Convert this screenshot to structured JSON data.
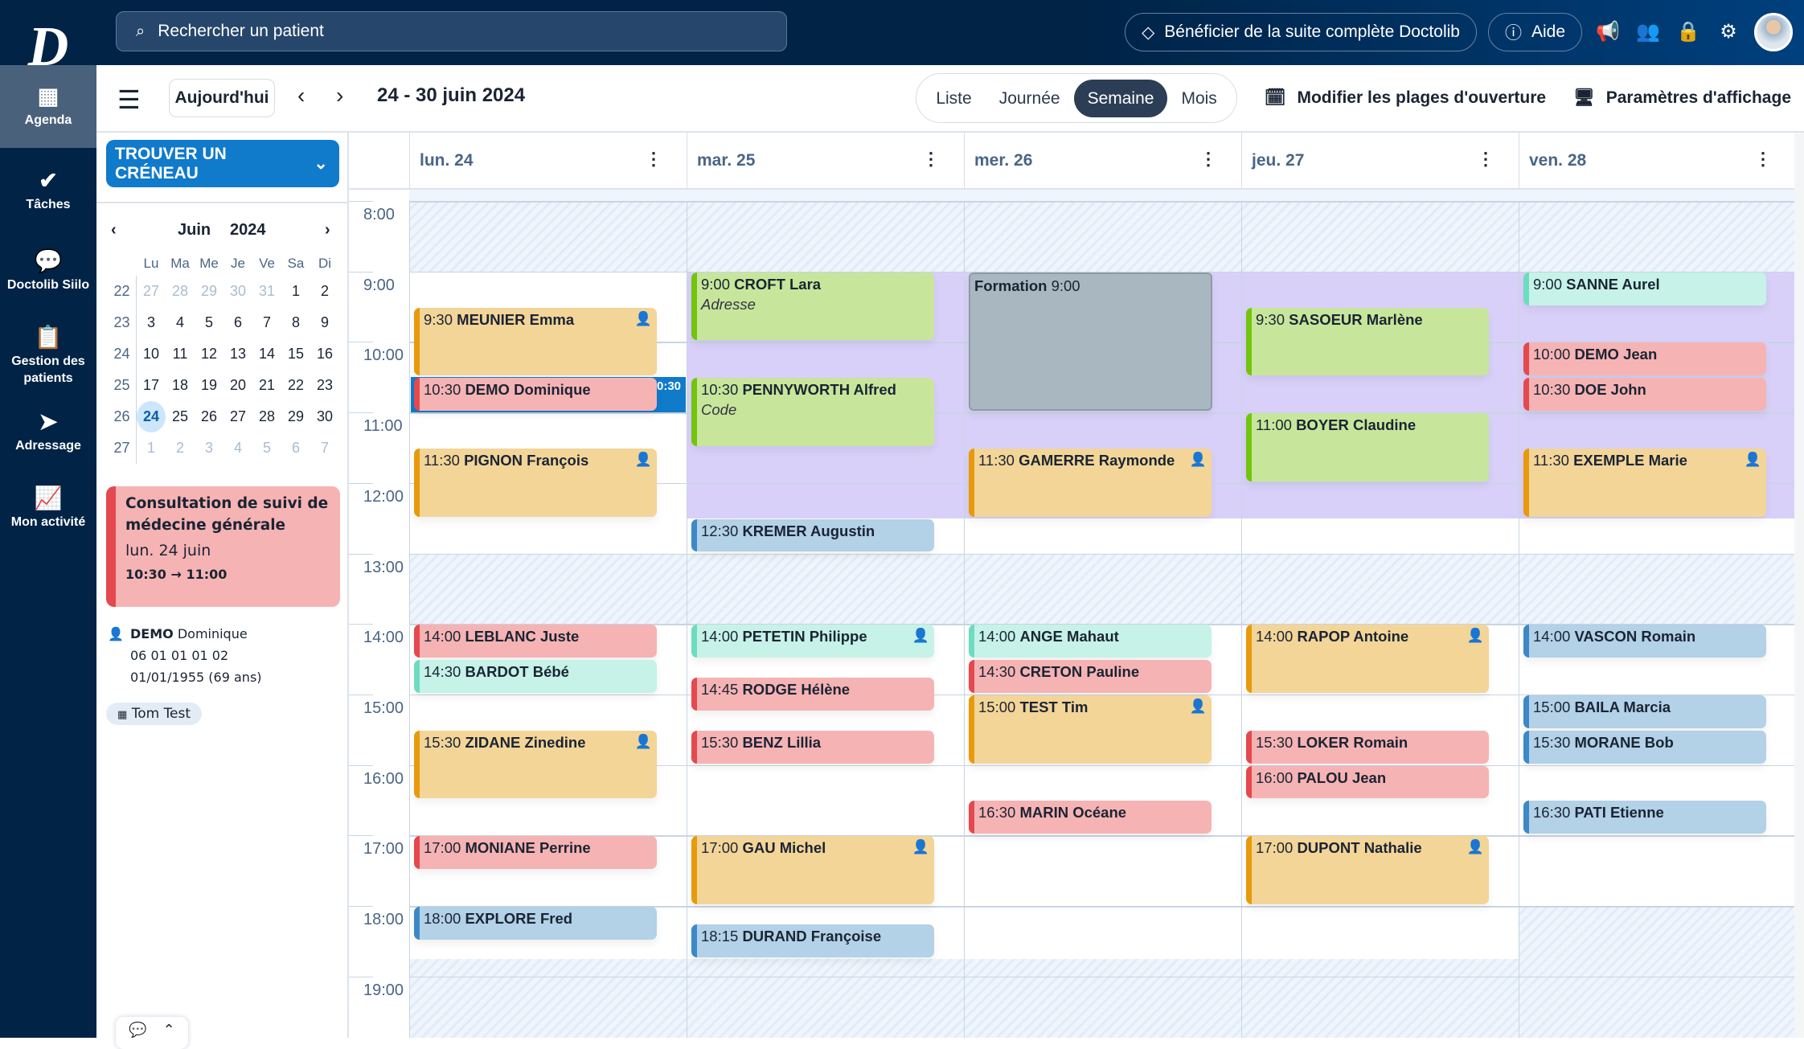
{
  "topbar": {
    "logo": "D",
    "search_placeholder": "Rechercher un patient",
    "upgrade": "Bénéficier de la suite complète Doctolib",
    "help": "Aide",
    "icons": [
      "megaphone-icon",
      "team-icon",
      "lock-icon",
      "gear-icon"
    ]
  },
  "nav": [
    {
      "label": "Agenda",
      "icon": "calendar-icon",
      "active": true
    },
    {
      "label": "Tâches",
      "icon": "check-circle-icon"
    },
    {
      "label": "Doctolib Siilo",
      "icon": "chat-icon"
    },
    {
      "label": "Gestion des patients",
      "icon": "clipboard-user-icon"
    },
    {
      "label": "Adressage",
      "icon": "paper-plane-icon"
    },
    {
      "label": "Mon activité",
      "icon": "chart-line-icon"
    }
  ],
  "toolbar": {
    "today": "Aujourd'hui",
    "range": "24 - 30 juin 2024",
    "views": [
      "Liste",
      "Journée",
      "Semaine",
      "Mois"
    ],
    "active_view": "Semaine",
    "opening": "Modifier les plages d'ouverture",
    "display": "Paramètres d'affichage"
  },
  "left": {
    "find": "TROUVER UN CRÉNEAU",
    "minical": {
      "month": "Juin",
      "year": "2024",
      "dow": [
        "Lu",
        "Ma",
        "Me",
        "Je",
        "Ve",
        "Sa",
        "Di"
      ],
      "weeks": [
        {
          "wk": "22",
          "days": [
            "27",
            "28",
            "29",
            "30",
            "31",
            "1",
            "2"
          ],
          "out": [
            0,
            1,
            2,
            3,
            4
          ]
        },
        {
          "wk": "23",
          "days": [
            "3",
            "4",
            "5",
            "6",
            "7",
            "8",
            "9"
          ],
          "out": []
        },
        {
          "wk": "24",
          "days": [
            "10",
            "11",
            "12",
            "13",
            "14",
            "15",
            "16"
          ],
          "out": []
        },
        {
          "wk": "25",
          "days": [
            "17",
            "18",
            "19",
            "20",
            "21",
            "22",
            "23"
          ],
          "out": []
        },
        {
          "wk": "26",
          "days": [
            "24",
            "25",
            "26",
            "27",
            "28",
            "29",
            "30"
          ],
          "out": [],
          "sel": 0
        },
        {
          "wk": "27",
          "days": [
            "1",
            "2",
            "3",
            "4",
            "5",
            "6",
            "7"
          ],
          "out": [
            0,
            1,
            2,
            3,
            4,
            5,
            6
          ]
        }
      ]
    },
    "card": {
      "title": "Consultation de suivi de médecine générale",
      "date": "lun. 24 juin",
      "time": "10:30 → 11:00"
    },
    "patient": {
      "last": "DEMO",
      "first": "Dominique",
      "phone": "06 01 01 01 02",
      "dob": "01/01/1955 (69 ans)"
    },
    "agenda_tag": "Tom Test"
  },
  "calendar": {
    "days": [
      "lun. 24",
      "mar. 25",
      "mer. 26",
      "jeu. 27",
      "ven. 28"
    ],
    "hours": [
      "8:00",
      "9:00",
      "10:00",
      "11:00",
      "12:00",
      "13:00",
      "14:00",
      "15:00",
      "16:00",
      "17:00",
      "18:00",
      "19:00"
    ],
    "colors": {
      "orange": [
        "#f3d598",
        "#e89a0c"
      ],
      "red": [
        "#f6b3b4",
        "#e5484d"
      ],
      "green": [
        "#c8e69b",
        "#72c40c"
      ],
      "blue": [
        "#b3d1e7",
        "#3d88c6"
      ],
      "teal": [
        "#c6f2e8",
        "#6ddcc0"
      ],
      "grey": [
        "#a9b8c0",
        "#8d9ca6"
      ]
    },
    "closed": [
      [
        [
          8,
          9
        ],
        [
          13,
          14
        ],
        [
          18.75,
          20
        ]
      ],
      [
        [
          8,
          9
        ],
        [
          13,
          14
        ],
        [
          18.75,
          20
        ]
      ],
      [
        [
          8,
          9
        ],
        [
          13,
          14
        ],
        [
          18.75,
          20
        ]
      ],
      [
        [
          8,
          9
        ],
        [
          13,
          14
        ],
        [
          18.75,
          20
        ]
      ],
      [
        [
          8,
          9
        ],
        [
          13,
          14
        ],
        [
          18,
          20
        ]
      ]
    ],
    "purple": [
      [],
      [
        [
          9,
          12.5
        ]
      ],
      [
        [
          9,
          12.5
        ]
      ],
      [
        [
          9,
          12.5
        ]
      ],
      [
        [
          9,
          12.5
        ]
      ]
    ],
    "selected_duration": "0:30",
    "events": [
      {
        "day": 0,
        "start": "9:30",
        "s": 9.5,
        "e": 10.5,
        "name": "MEUNIER Emma",
        "color": "orange",
        "icon": true
      },
      {
        "day": 0,
        "start": "10:30",
        "s": 10.5,
        "e": 11,
        "name": "DEMO Dominique",
        "color": "red",
        "selected": true
      },
      {
        "day": 0,
        "start": "11:30",
        "s": 11.5,
        "e": 12.5,
        "name": "PIGNON François",
        "color": "orange",
        "icon": true
      },
      {
        "day": 0,
        "start": "14:00",
        "s": 14,
        "e": 14.5,
        "name": "LEBLANC Juste",
        "color": "red"
      },
      {
        "day": 0,
        "start": "14:30",
        "s": 14.5,
        "e": 15,
        "name": "BARDOT Bébé",
        "color": "teal"
      },
      {
        "day": 0,
        "start": "15:30",
        "s": 15.5,
        "e": 16.5,
        "name": "ZIDANE Zinedine",
        "color": "orange",
        "icon": true
      },
      {
        "day": 0,
        "start": "17:00",
        "s": 17,
        "e": 17.5,
        "name": "MONIANE Perrine",
        "color": "red"
      },
      {
        "day": 0,
        "start": "18:00",
        "s": 18,
        "e": 18.5,
        "name": "EXPLORE Fred",
        "color": "blue"
      },
      {
        "day": 1,
        "start": "9:00",
        "s": 9,
        "e": 10,
        "name": "CROFT Lara",
        "sub": "Adresse",
        "color": "green"
      },
      {
        "day": 1,
        "start": "10:30",
        "s": 10.5,
        "e": 11.5,
        "name": "PENNYWORTH Alfred",
        "sub": "Code",
        "color": "green"
      },
      {
        "day": 1,
        "start": "12:30",
        "s": 12.5,
        "e": 13,
        "name": "KREMER Augustin",
        "color": "blue"
      },
      {
        "day": 1,
        "start": "14:00",
        "s": 14,
        "e": 14.5,
        "name": "PETETIN Philippe",
        "color": "teal",
        "icon": true
      },
      {
        "day": 1,
        "start": "14:45",
        "s": 14.75,
        "e": 15.25,
        "name": "RODGE Hélène",
        "color": "red"
      },
      {
        "day": 1,
        "start": "15:30",
        "s": 15.5,
        "e": 16,
        "name": "BENZ Lillia",
        "color": "red"
      },
      {
        "day": 1,
        "start": "17:00",
        "s": 17,
        "e": 18,
        "name": "GAU Michel",
        "color": "orange",
        "icon": true
      },
      {
        "day": 1,
        "start": "18:15",
        "s": 18.25,
        "e": 18.75,
        "name": "DURAND Françoise",
        "color": "blue"
      },
      {
        "day": 2,
        "start": "9:00",
        "s": 9,
        "e": 11,
        "name": "Formation",
        "color": "grey",
        "formation": true
      },
      {
        "day": 2,
        "start": "11:30",
        "s": 11.5,
        "e": 12.5,
        "name": "GAMERRE Raymonde",
        "color": "orange",
        "icon": true
      },
      {
        "day": 2,
        "start": "14:00",
        "s": 14,
        "e": 14.5,
        "name": "ANGE Mahaut",
        "color": "teal"
      },
      {
        "day": 2,
        "start": "14:30",
        "s": 14.5,
        "e": 15,
        "name": "CRETON Pauline",
        "color": "red"
      },
      {
        "day": 2,
        "start": "15:00",
        "s": 15,
        "e": 16,
        "name": "TEST Tim",
        "color": "orange",
        "icon": true
      },
      {
        "day": 2,
        "start": "16:30",
        "s": 16.5,
        "e": 17,
        "name": "MARIN Océane",
        "color": "red"
      },
      {
        "day": 3,
        "start": "9:30",
        "s": 9.5,
        "e": 10.5,
        "name": "SASOEUR Marlène",
        "color": "green"
      },
      {
        "day": 3,
        "start": "11:00",
        "s": 11,
        "e": 12,
        "name": "BOYER Claudine",
        "color": "green"
      },
      {
        "day": 3,
        "start": "14:00",
        "s": 14,
        "e": 15,
        "name": "RAPOP Antoine",
        "color": "orange",
        "icon": true
      },
      {
        "day": 3,
        "start": "15:30",
        "s": 15.5,
        "e": 16,
        "name": "LOKER Romain",
        "color": "red"
      },
      {
        "day": 3,
        "start": "16:00",
        "s": 16,
        "e": 16.5,
        "name": "PALOU Jean",
        "color": "red"
      },
      {
        "day": 3,
        "start": "17:00",
        "s": 17,
        "e": 18,
        "name": "DUPONT Nathalie",
        "color": "orange",
        "icon": true
      },
      {
        "day": 4,
        "start": "9:00",
        "s": 9,
        "e": 9.5,
        "name": "SANNE Aurel",
        "color": "teal"
      },
      {
        "day": 4,
        "start": "10:00",
        "s": 10,
        "e": 10.5,
        "name": "DEMO Jean",
        "color": "red"
      },
      {
        "day": 4,
        "start": "10:30",
        "s": 10.5,
        "e": 11,
        "name": "DOE John",
        "color": "red"
      },
      {
        "day": 4,
        "start": "11:30",
        "s": 11.5,
        "e": 12.5,
        "name": "EXEMPLE Marie",
        "color": "orange",
        "icon": true
      },
      {
        "day": 4,
        "start": "14:00",
        "s": 14,
        "e": 14.5,
        "name": "VASCON Romain",
        "color": "blue"
      },
      {
        "day": 4,
        "start": "15:00",
        "s": 15,
        "e": 15.5,
        "name": "BAILA Marcia",
        "color": "blue"
      },
      {
        "day": 4,
        "start": "15:30",
        "s": 15.5,
        "e": 16,
        "name": "MORANE Bob",
        "color": "blue"
      },
      {
        "day": 4,
        "start": "16:30",
        "s": 16.5,
        "e": 17,
        "name": "PATI Etienne",
        "color": "blue"
      }
    ]
  }
}
